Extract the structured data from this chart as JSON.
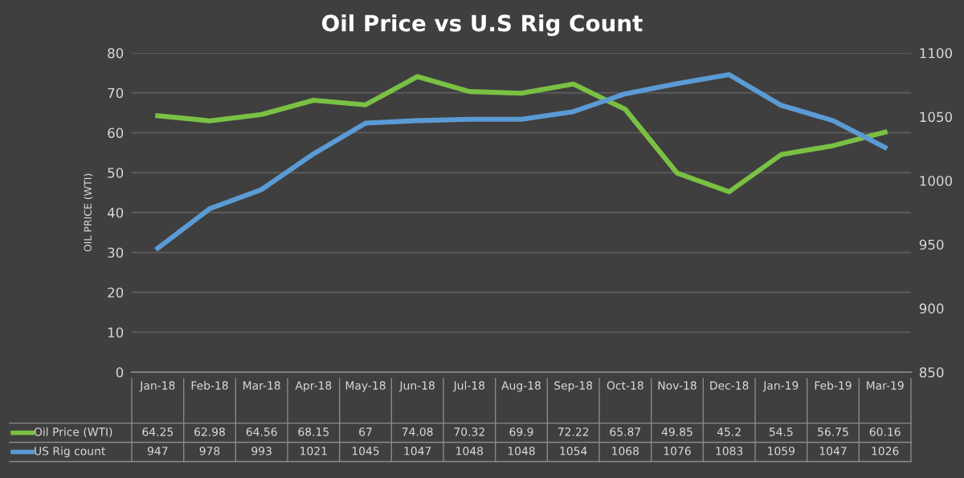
{
  "chart_data": {
    "type": "line",
    "title": "Oil Price vs U.S Rig Count",
    "ylabel": "OIL PRICE (WTI)",
    "categories": [
      "Jan-18",
      "Feb-18",
      "Mar-18",
      "Apr-18",
      "May-18",
      "Jun-18",
      "Jul-18",
      "Aug-18",
      "Sep-18",
      "Oct-18",
      "Nov-18",
      "Dec-18",
      "Jan-19",
      "Feb-19",
      "Mar-19"
    ],
    "series": [
      {
        "name": "Oil Price (WTI)",
        "color": "#7ac143",
        "values": [
          64.25,
          62.98,
          64.56,
          68.15,
          67,
          74.08,
          70.32,
          69.9,
          72.22,
          65.87,
          49.85,
          45.2,
          54.5,
          56.75,
          60.16
        ]
      },
      {
        "name": "US Rig count",
        "color": "#5b9bd5",
        "axis": "y2",
        "values": [
          947,
          978,
          993,
          1021,
          1045,
          1047,
          1048,
          1048,
          1054,
          1068,
          1076,
          1083,
          1059,
          1047,
          1026
        ]
      }
    ],
    "ylim": [
      0,
      80
    ],
    "yticks": [
      0,
      10,
      20,
      30,
      40,
      50,
      60,
      70,
      80
    ],
    "y2lim": [
      850,
      1100
    ],
    "y2ticks": [
      850,
      900,
      950,
      1000,
      1050,
      1100
    ],
    "grid": "y",
    "data_labels": true,
    "legend": "bottom",
    "marker": "none",
    "line_style": "solid"
  }
}
